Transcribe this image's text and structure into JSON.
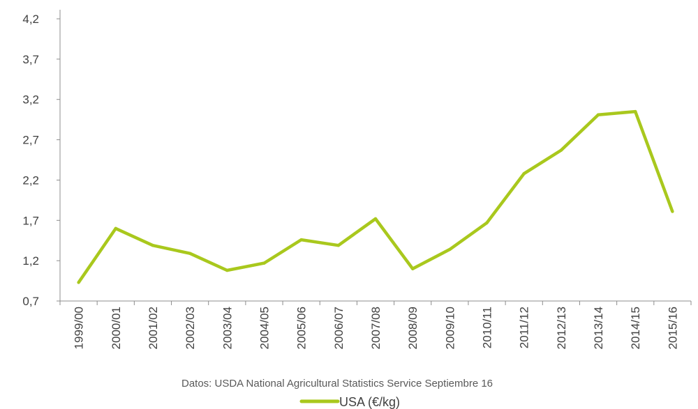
{
  "chart_data": {
    "type": "line",
    "title": "",
    "xlabel": "",
    "ylabel": "",
    "categories": [
      "1999/00",
      "2000/01",
      "2001/02",
      "2002/03",
      "2003/04",
      "2004/05",
      "2005/06",
      "2006/07",
      "2007/08",
      "2008/09",
      "2009/10",
      "2010/11",
      "2011/12",
      "2012/13",
      "2013/14",
      "2014/15",
      "2015/16"
    ],
    "series": [
      {
        "name": "USA (€/kg)",
        "color": "#a9c81d",
        "values": [
          0.93,
          1.6,
          1.39,
          1.29,
          1.08,
          1.17,
          1.46,
          1.39,
          1.72,
          1.1,
          1.34,
          1.67,
          2.28,
          2.57,
          3.01,
          3.05,
          1.81
        ]
      }
    ],
    "yticks": [
      "0,7",
      "1,2",
      "1,7",
      "2,2",
      "2,7",
      "3,2",
      "3,7",
      "4,2"
    ],
    "ylim": [
      0.7,
      4.2
    ],
    "grid": false,
    "legend": "bottom",
    "source_note": "Datos: USDA National Agricultural Statistics Service Septiembre 16"
  }
}
